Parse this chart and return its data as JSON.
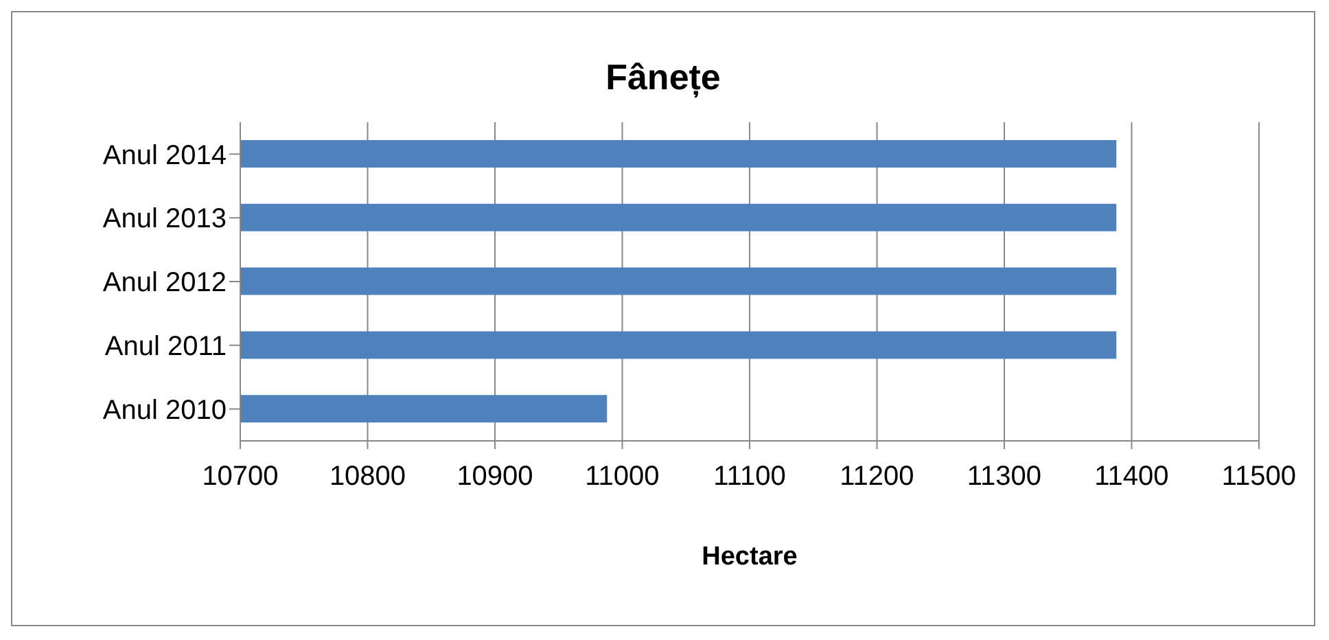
{
  "chart_data": {
    "type": "bar",
    "orientation": "horizontal",
    "title": "Fânețe",
    "xlabel": "Hectare",
    "categories": [
      "Anul 2014",
      "Anul 2013",
      "Anul 2012",
      "Anul 2011",
      "Anul 2010"
    ],
    "values": [
      11388,
      11388,
      11388,
      11388,
      10988
    ],
    "color": "#4f81bd",
    "xlim": [
      10700,
      11500
    ],
    "xticks": [
      10700,
      10800,
      10900,
      11000,
      11100,
      11200,
      11300,
      11400,
      11500
    ],
    "grid": "x"
  }
}
